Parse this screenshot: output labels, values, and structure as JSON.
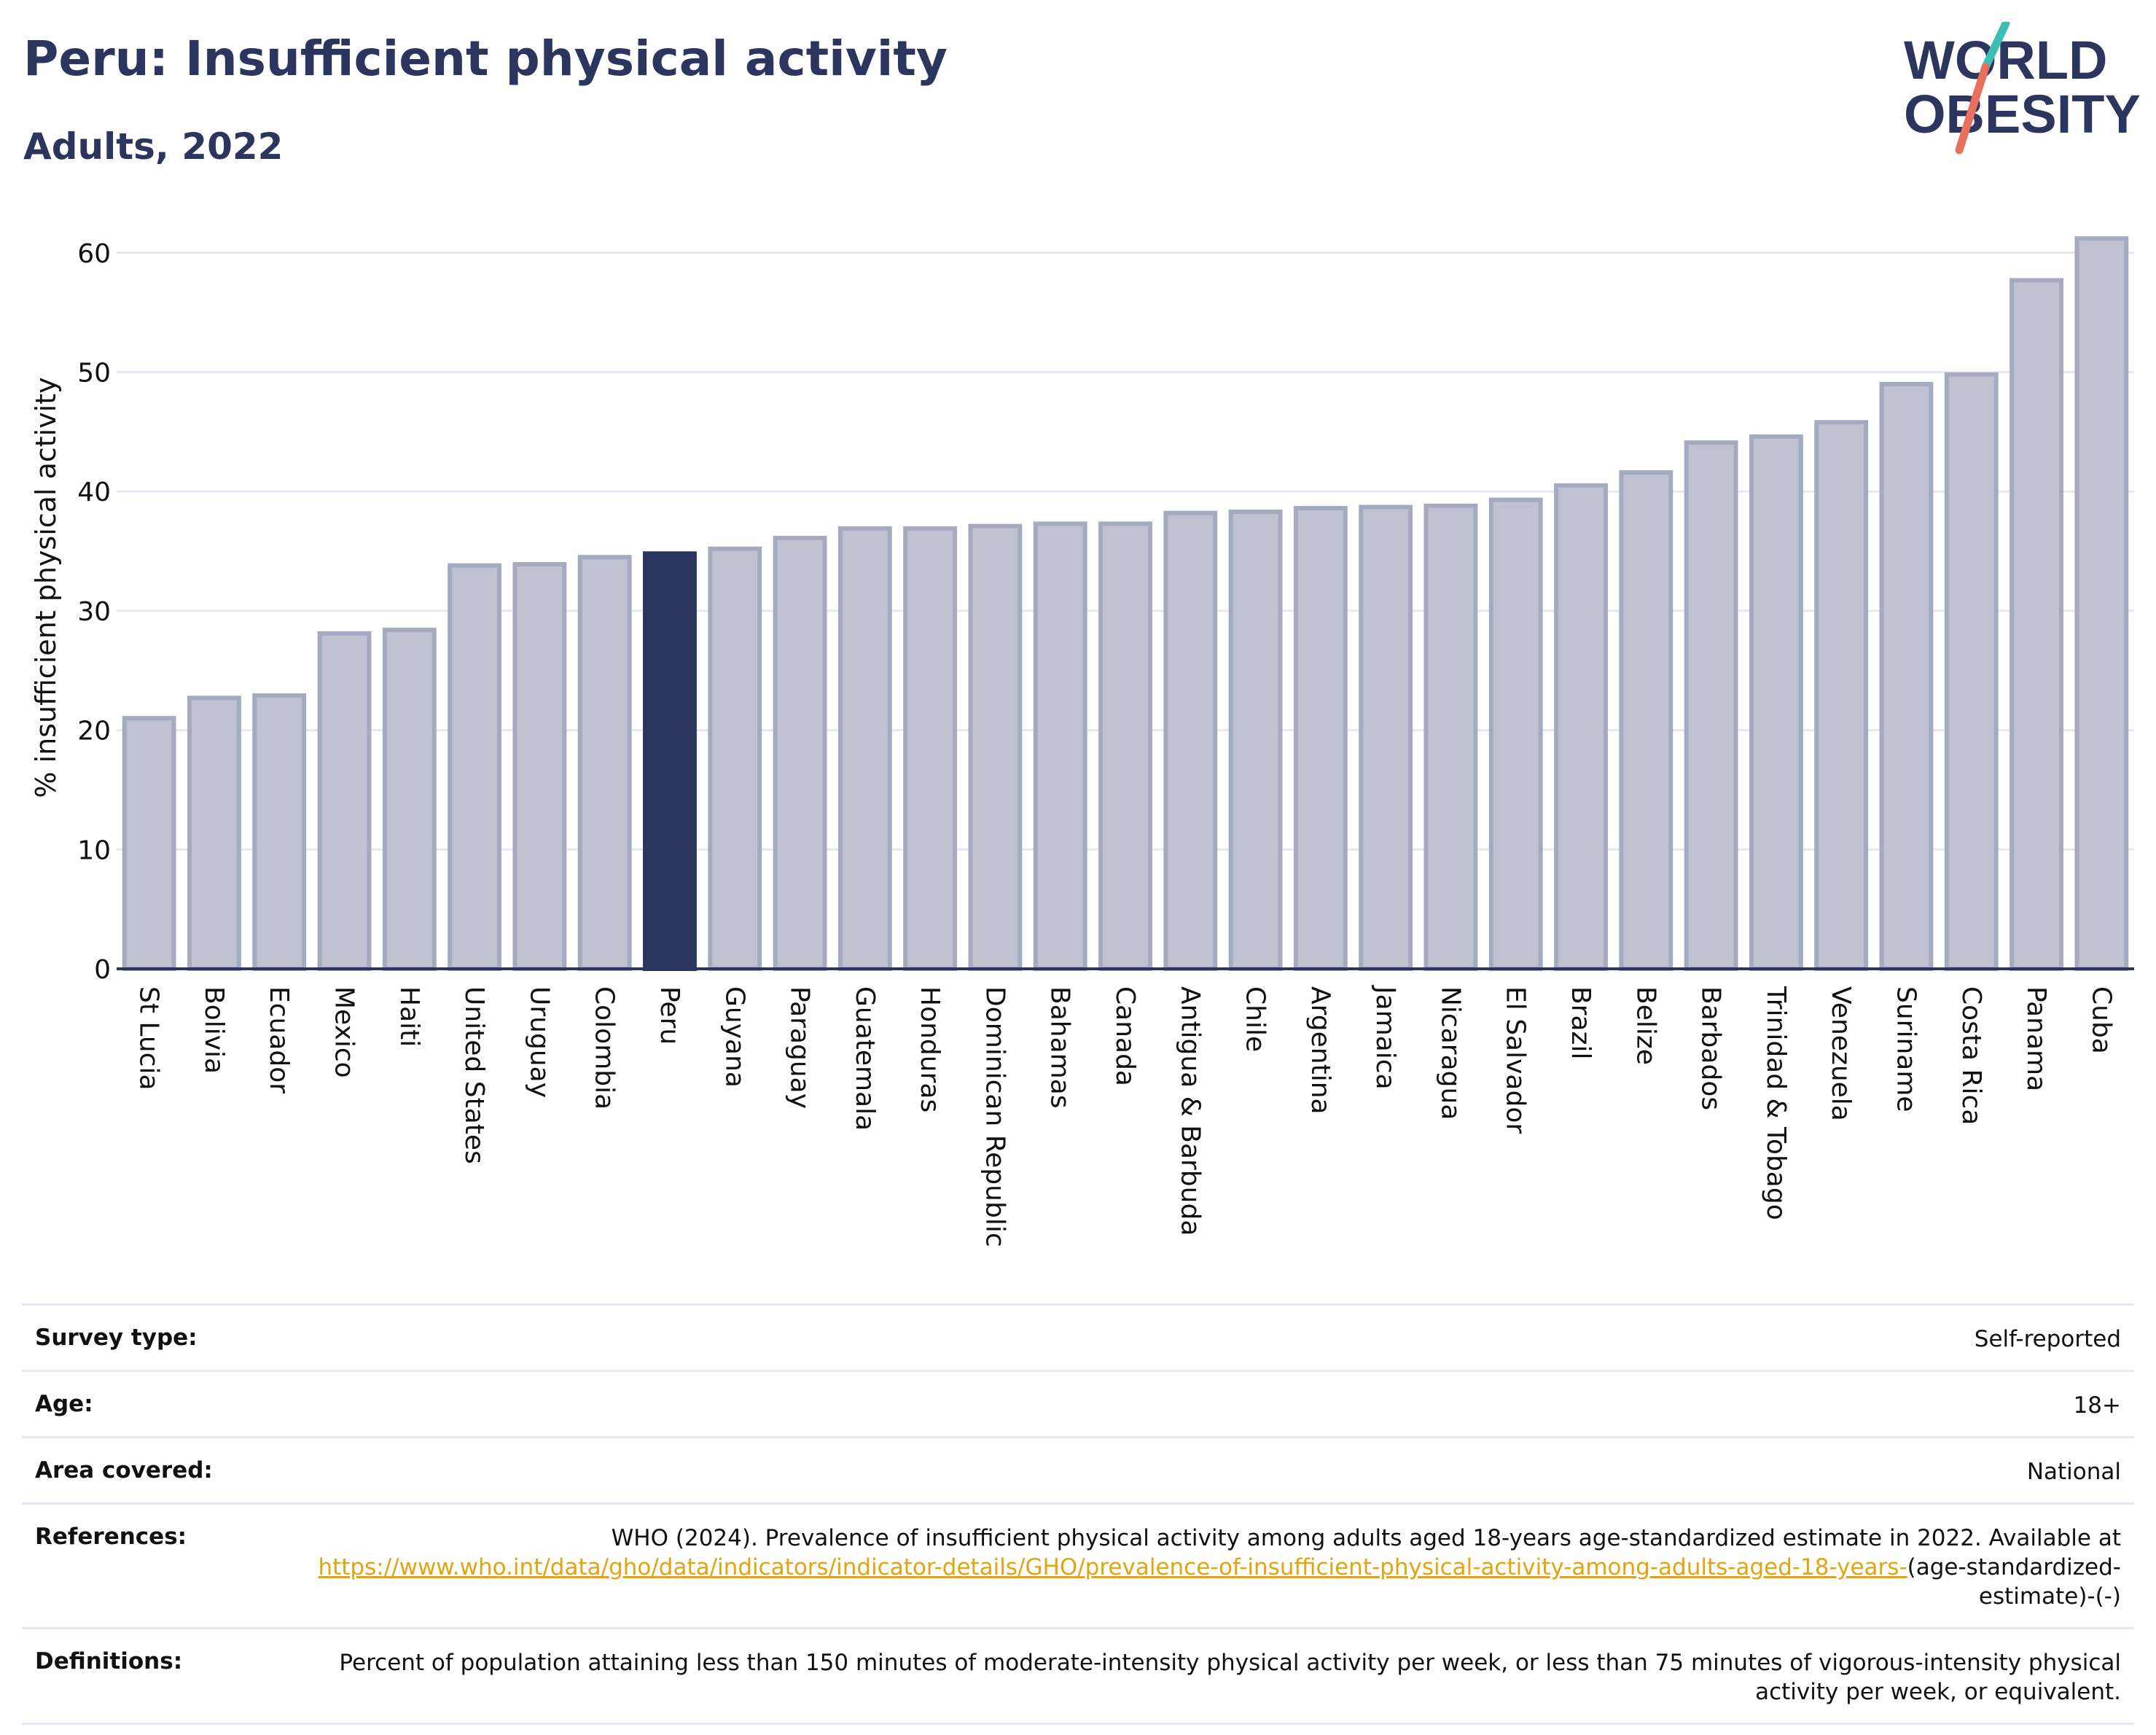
{
  "header": {
    "title": "Peru: Insufficient physical activity",
    "subtitle": "Adults, 2022"
  },
  "logo": {
    "line1": "WORLD",
    "line2": "OBESITY"
  },
  "chart_data": {
    "type": "bar",
    "ylabel": "% insufficient physical activity",
    "ylim": [
      0,
      63
    ],
    "yticks": [
      0,
      10,
      20,
      30,
      40,
      50,
      60
    ],
    "grid": true,
    "highlight": "Peru",
    "categories": [
      "St Lucia",
      "Bolivia",
      "Ecuador",
      "Mexico",
      "Haiti",
      "United States",
      "Uruguay",
      "Colombia",
      "Peru",
      "Guyana",
      "Paraguay",
      "Guatemala",
      "Honduras",
      "Dominican Republic",
      "Bahamas",
      "Canada",
      "Antigua & Barbuda",
      "Chile",
      "Argentina",
      "Jamaica",
      "Nicaragua",
      "El Salvador",
      "Brazil",
      "Belize",
      "Barbados",
      "Trinidad & Tobago",
      "Venezuela",
      "Suriname",
      "Costa Rica",
      "Panama",
      "Cuba"
    ],
    "values": [
      21.0,
      22.7,
      22.9,
      28.1,
      28.4,
      33.8,
      33.9,
      34.5,
      34.8,
      35.2,
      36.1,
      36.9,
      36.9,
      37.1,
      37.3,
      37.3,
      38.2,
      38.3,
      38.6,
      38.7,
      38.8,
      39.3,
      40.5,
      41.6,
      44.1,
      44.6,
      45.8,
      49.0,
      49.8,
      57.7,
      61.2
    ]
  },
  "colors": {
    "title": "#2c355e",
    "bar": "#bfc3d1",
    "bar_border": "#a4aac0",
    "highlight_bar": "#2c355e",
    "logo_teal": "#3bbfb5",
    "logo_red": "#e8705d",
    "link": "#e3a50f"
  },
  "info": {
    "survey_type": {
      "label": "Survey type:",
      "value": "Self-reported"
    },
    "age": {
      "label": "Age:",
      "value": "18+"
    },
    "area": {
      "label": "Area covered:",
      "value": "National"
    },
    "references": {
      "label": "References:",
      "text": "WHO (2024). Prevalence of insufficient physical activity among adults aged 18-years age-standardized estimate in 2022. Available at",
      "link": "https://www.who.int/data/gho/data/indicators/indicator-details/GHO/prevalence-of-insufficient-physical-activity-among-adults-aged-18-years-",
      "suffix": "(age-standardized-estimate)-(-)"
    },
    "definitions": {
      "label": "Definitions:",
      "value": "Percent of population attaining less than 150 minutes of moderate-intensity physical activity per week, or less than 75 minutes of vigorous-intensity physical activity per week, or equivalent."
    }
  }
}
